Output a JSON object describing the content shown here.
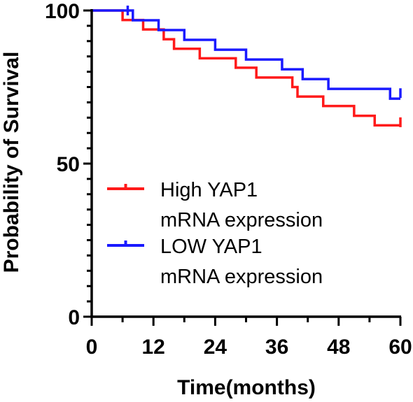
{
  "chart_data": {
    "type": "line",
    "title": "",
    "xlabel": "Time(months)",
    "ylabel": "Probability of Survival",
    "xlim": [
      0,
      60
    ],
    "ylim": [
      0,
      100
    ],
    "x_ticks": [
      "0",
      "12",
      "24",
      "36",
      "48",
      "60"
    ],
    "y_ticks": [
      "0",
      "50",
      "100"
    ],
    "grid": false,
    "legend_position": "center-left",
    "series": [
      {
        "name_lines": [
          "High YAP1",
          "mRNA expression"
        ],
        "color": "#ff1a1a",
        "step": true,
        "points": [
          [
            0,
            100
          ],
          [
            6,
            96.9
          ],
          [
            10,
            93.8
          ],
          [
            14,
            90.6
          ],
          [
            16,
            87.5
          ],
          [
            21,
            84.4
          ],
          [
            28,
            81.3
          ],
          [
            32,
            78.1
          ],
          [
            39,
            75
          ],
          [
            40,
            71.9
          ],
          [
            45,
            68.8
          ],
          [
            51,
            65.6
          ],
          [
            55,
            62.5
          ],
          [
            60,
            62.5
          ]
        ],
        "censored": [
          [
            60,
            63.5
          ]
        ]
      },
      {
        "name_lines": [
          "LOW YAP1",
          "mRNA expression"
        ],
        "color": "#1a1aff",
        "step": true,
        "points": [
          [
            0,
            100
          ],
          [
            8,
            96.8
          ],
          [
            13,
            93.6
          ],
          [
            18,
            90.4
          ],
          [
            24,
            87.2
          ],
          [
            30,
            84
          ],
          [
            37,
            80.8
          ],
          [
            41,
            77.6
          ],
          [
            46,
            74.4
          ],
          [
            58,
            71.2
          ],
          [
            60,
            71.2
          ]
        ],
        "censored": [
          [
            7,
            100
          ],
          [
            60,
            73
          ]
        ]
      }
    ]
  }
}
